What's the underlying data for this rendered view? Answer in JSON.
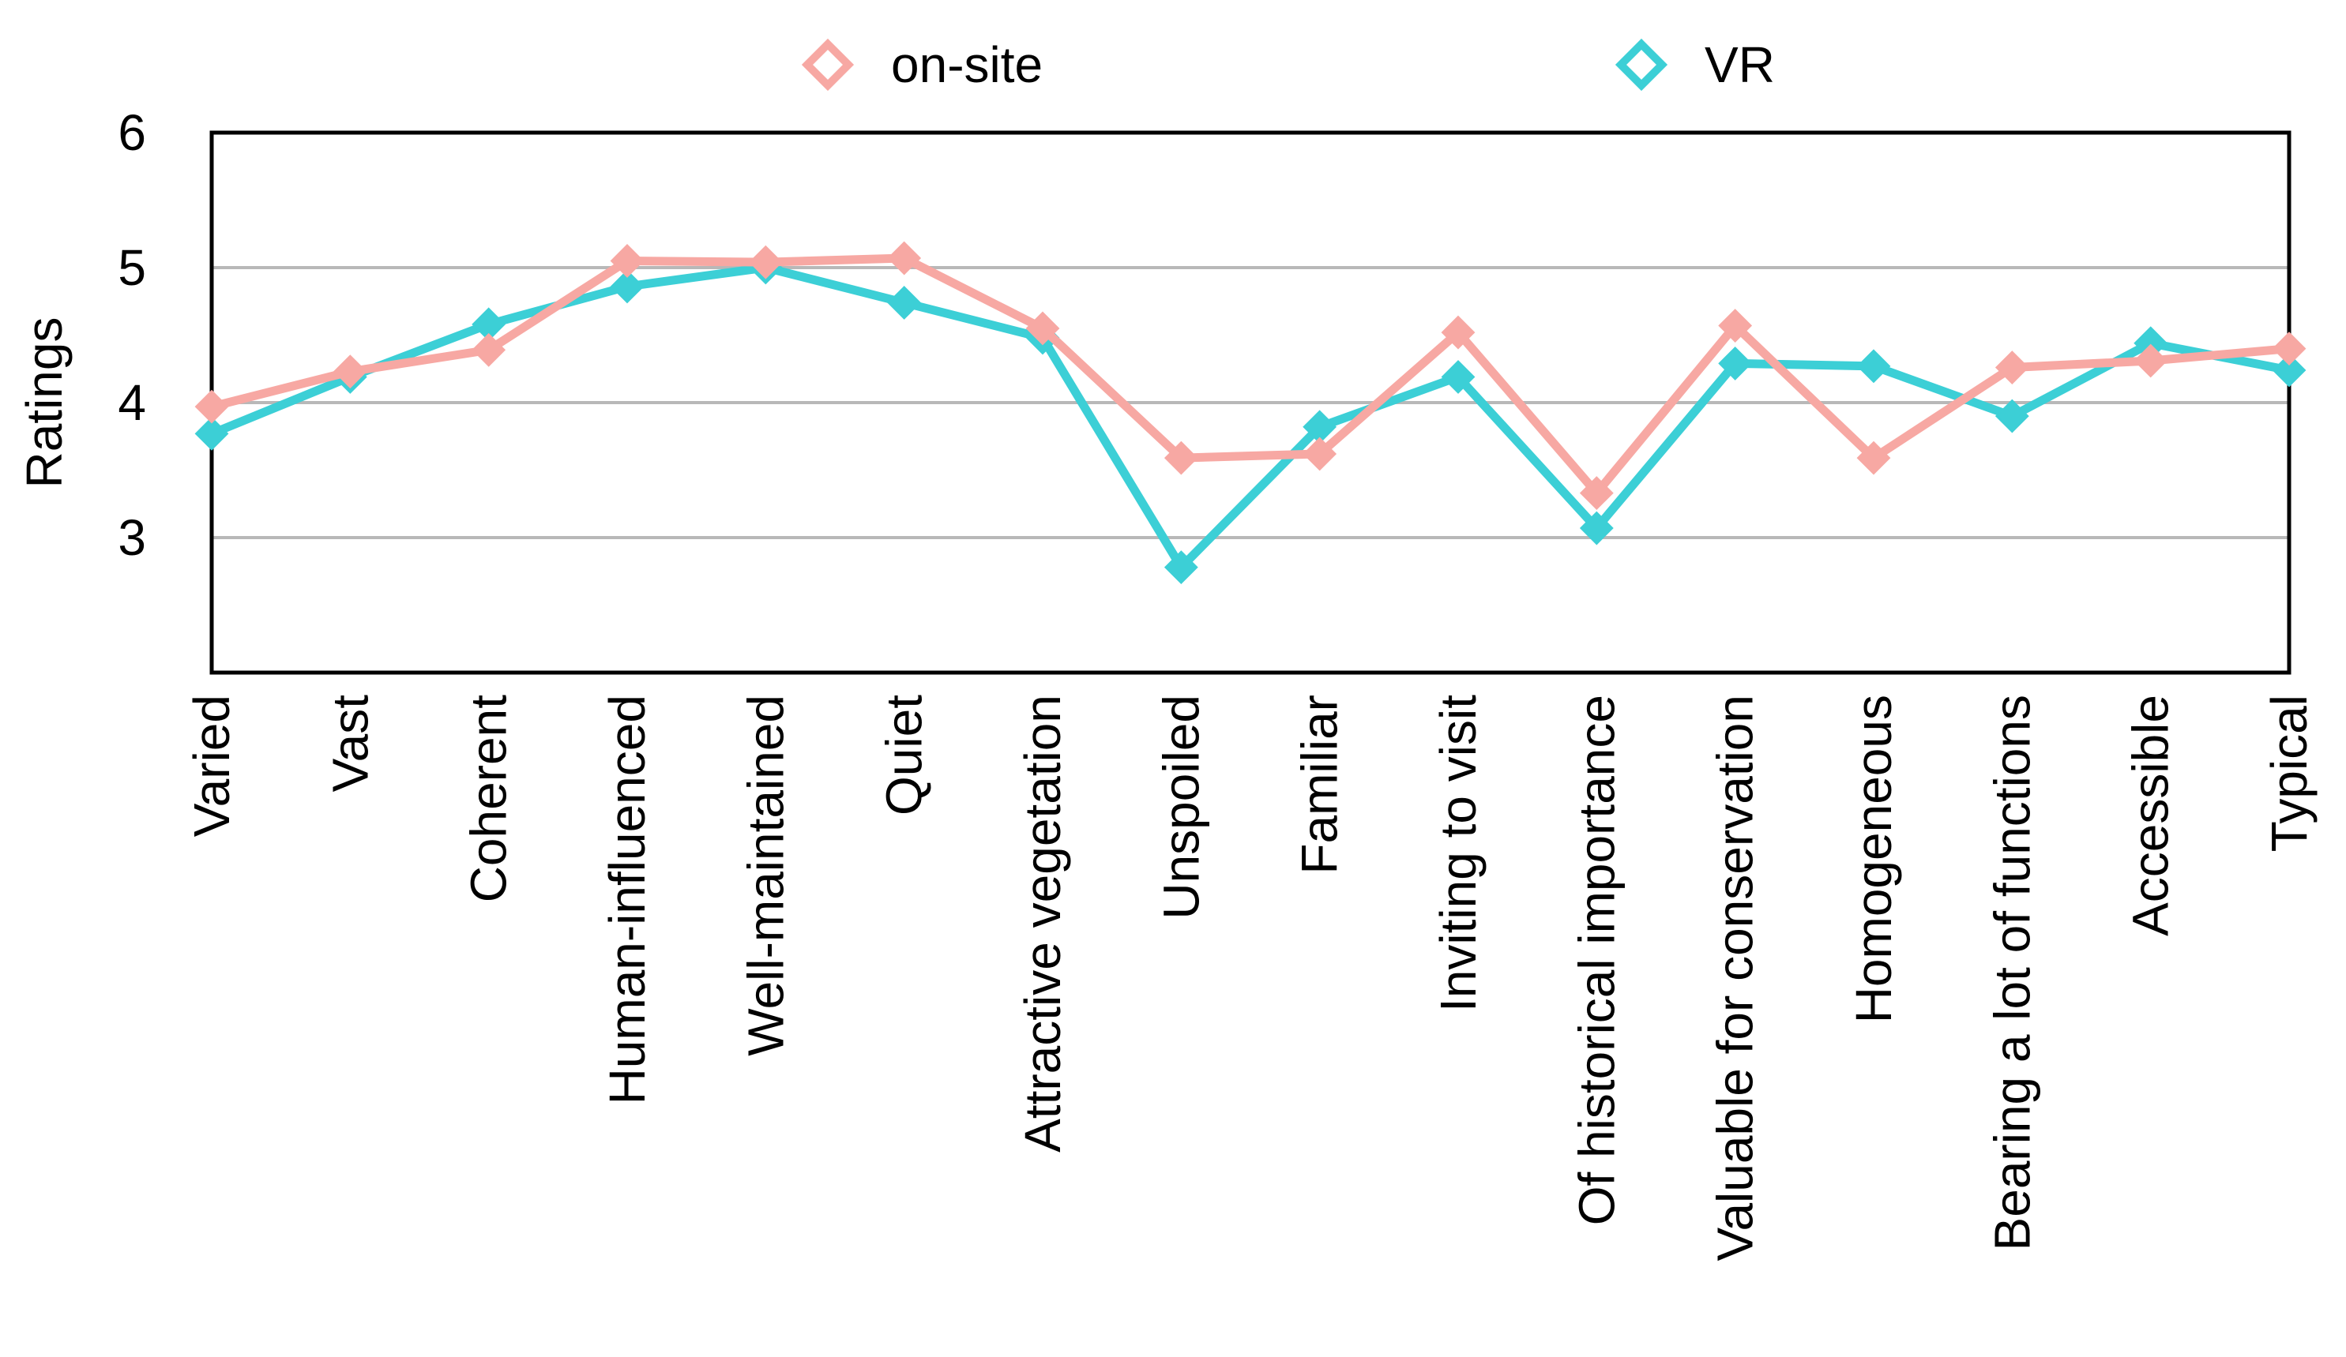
{
  "chart_data": {
    "type": "line",
    "title": "",
    "xlabel": "",
    "ylabel": "Ratings",
    "ylim": [
      2,
      6
    ],
    "yticks": [
      3,
      4,
      5,
      6
    ],
    "gridlines_at": [
      3,
      4,
      5
    ],
    "legend_position": "top-center",
    "categories": [
      "Varied",
      "Vast",
      "Coherent",
      "Human-influenced",
      "Well-maintained",
      "Quiet",
      "Attractive vegetation",
      "Unspoiled",
      "Familiar",
      "Inviting to visit",
      "Of historical importance",
      "Valuable for conservation",
      "Homogeneous",
      "Bearing a lot of functions",
      "Accessible",
      "Typical"
    ],
    "series": [
      {
        "name": "on-site",
        "color": "#f7a8a3",
        "marker": "diamond",
        "values": [
          3.97,
          4.23,
          4.39,
          5.05,
          5.04,
          5.07,
          4.55,
          3.59,
          3.62,
          4.52,
          3.33,
          4.57,
          3.59,
          4.26,
          4.31,
          4.4
        ]
      },
      {
        "name": "VR",
        "color": "#3ccfd6",
        "marker": "diamond",
        "values": [
          3.77,
          4.19,
          4.58,
          4.86,
          5.0,
          4.74,
          4.48,
          2.78,
          3.82,
          4.19,
          3.07,
          4.29,
          4.27,
          3.9,
          4.44,
          4.24
        ]
      }
    ]
  }
}
